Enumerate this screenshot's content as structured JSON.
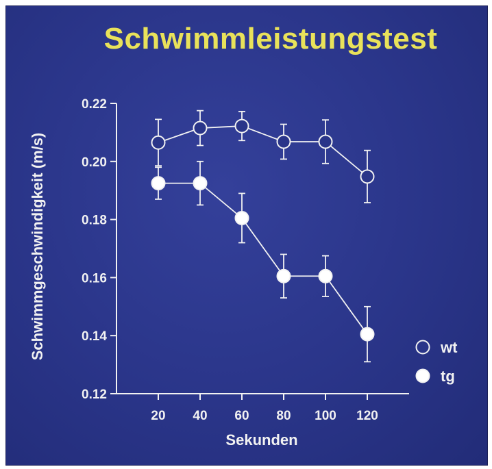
{
  "chart_data": {
    "type": "line",
    "title": "Schwimmleistungstest",
    "xlabel": "Sekunden",
    "ylabel": "Schwimmgeschwindigkeit (m/s)",
    "x": [
      20,
      40,
      60,
      80,
      100,
      120
    ],
    "xlim": [
      0,
      140
    ],
    "ylim": [
      0.12,
      0.22
    ],
    "y_ticks": [
      "0.12",
      "0.14",
      "0.16",
      "0.18",
      "0.20",
      "0.22"
    ],
    "x_ticks": [
      "20",
      "40",
      "60",
      "80",
      "100",
      "120"
    ],
    "series": [
      {
        "name": "wt",
        "marker": "open-circle",
        "values": [
          0.2065,
          0.2115,
          0.2122,
          0.2068,
          0.2068,
          0.1948
        ],
        "errors": [
          0.008,
          0.006,
          0.005,
          0.006,
          0.0075,
          0.009
        ]
      },
      {
        "name": "tg",
        "marker": "filled-circle",
        "values": [
          0.1925,
          0.1925,
          0.1805,
          0.1605,
          0.1605,
          0.1405
        ],
        "errors": [
          0.0055,
          0.0075,
          0.0085,
          0.0075,
          0.007,
          0.0095
        ]
      }
    ],
    "legend_position": "right",
    "colors": {
      "background": "#2a3589",
      "title": "#e9e25a",
      "foreground": "#f2f2f2"
    }
  }
}
